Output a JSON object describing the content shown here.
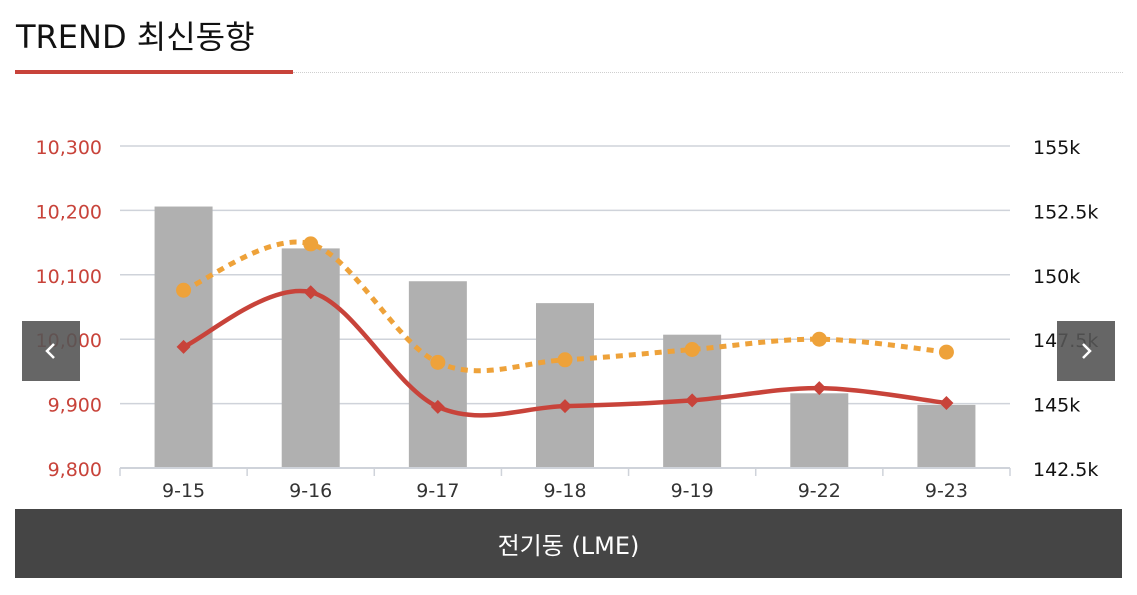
{
  "header": {
    "title": "TREND 최신동향"
  },
  "footer": {
    "label": "전기동 (LME)"
  },
  "colors": {
    "accent": "#c8433a",
    "bar": "#b0b0b0",
    "line_solid": "#c8433a",
    "line_dotted": "#eea23a",
    "grid": "#cfd3da",
    "footer_bg": "#454545"
  },
  "icons": {
    "prev": "chevron-left-icon",
    "next": "chevron-right-icon"
  },
  "chart_data": {
    "type": "bar",
    "categories": [
      "9-15",
      "9-16",
      "9-17",
      "9-18",
      "9-19",
      "9-22",
      "9-23"
    ],
    "left_axis": {
      "ticks": [
        "10,300",
        "10,200",
        "10,100",
        "10,000",
        "9,900",
        "9,800"
      ],
      "min": 9800,
      "max": 10300
    },
    "right_axis": {
      "ticks": [
        "155k",
        "152.5k",
        "150k",
        "147.5k",
        "145k",
        "142.5k"
      ],
      "min": 142500,
      "max": 155000
    },
    "grid": true,
    "series": [
      {
        "type": "bar",
        "axis": "left",
        "values": [
          10206,
          10141,
          10090,
          10056,
          10007,
          9916,
          9898
        ]
      },
      {
        "type": "line",
        "style": "solid",
        "marker": "diamond",
        "axis": "left",
        "values": [
          9988,
          10073,
          9895,
          9896,
          9905,
          9924,
          9901
        ]
      },
      {
        "type": "line",
        "style": "dotted",
        "marker": "circle",
        "axis": "right",
        "values": [
          149400,
          151200,
          146600,
          146700,
          147100,
          147500,
          147000
        ]
      }
    ]
  }
}
